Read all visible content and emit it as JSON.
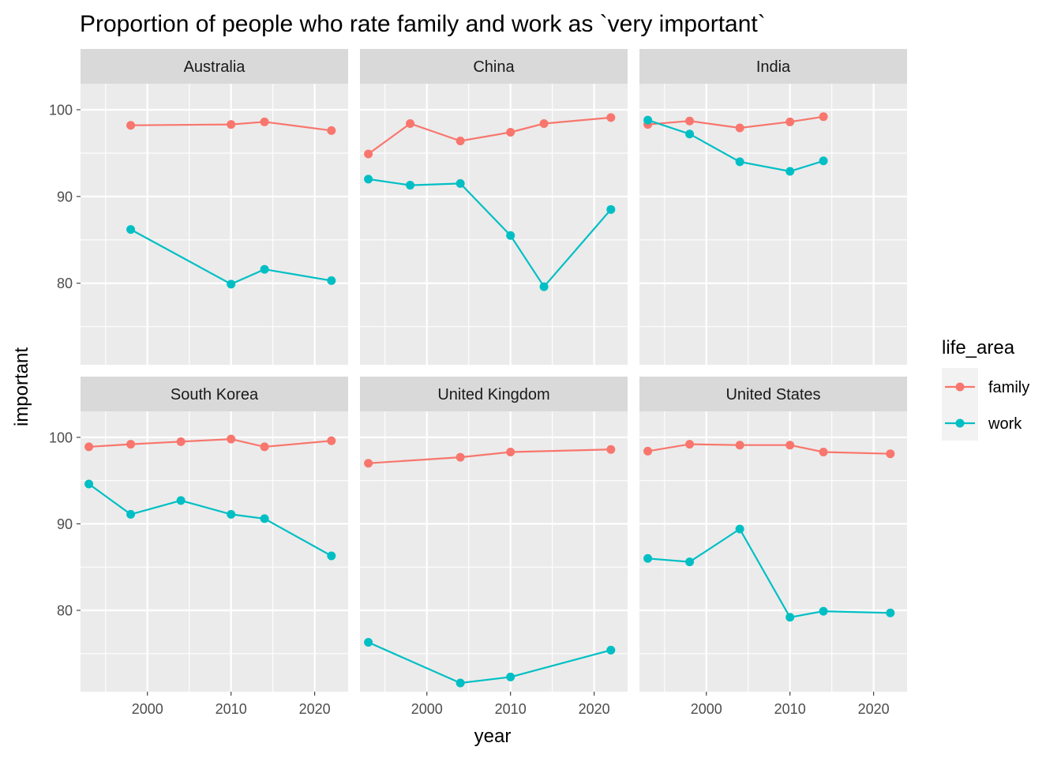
{
  "chart_data": {
    "type": "line",
    "title": "Proportion of people who rate family and work as `very important`",
    "xlabel": "year",
    "ylabel": "important",
    "xlim": [
      1992,
      2024
    ],
    "ylim": [
      70.6,
      103.0
    ],
    "x_ticks": [
      2000,
      2010,
      2020
    ],
    "y_ticks": [
      80,
      90,
      100
    ],
    "grid": true,
    "legend": {
      "title": "life_area",
      "position": "right",
      "entries": [
        {
          "name": "family",
          "color": "#F8766D"
        },
        {
          "name": "work",
          "color": "#00BFC4"
        }
      ]
    },
    "panels": [
      {
        "name": "Australia",
        "series": [
          {
            "name": "family",
            "x": [
              1998,
              2010,
              2014,
              2022
            ],
            "y": [
              98.2,
              98.3,
              98.6,
              97.6
            ]
          },
          {
            "name": "work",
            "x": [
              1998,
              2010,
              2014,
              2022
            ],
            "y": [
              86.2,
              79.9,
              81.6,
              80.3
            ]
          }
        ]
      },
      {
        "name": "China",
        "series": [
          {
            "name": "family",
            "x": [
              1993,
              1998,
              2004,
              2010,
              2014,
              2022
            ],
            "y": [
              94.9,
              98.4,
              96.4,
              97.4,
              98.4,
              99.1
            ]
          },
          {
            "name": "work",
            "x": [
              1993,
              1998,
              2004,
              2010,
              2014,
              2022
            ],
            "y": [
              92.0,
              91.3,
              91.5,
              85.5,
              79.6,
              88.5
            ]
          }
        ]
      },
      {
        "name": "India",
        "series": [
          {
            "name": "family",
            "x": [
              1993,
              1998,
              2004,
              2010,
              2014
            ],
            "y": [
              98.3,
              98.7,
              97.9,
              98.6,
              99.2
            ]
          },
          {
            "name": "work",
            "x": [
              1993,
              1998,
              2004,
              2010,
              2014
            ],
            "y": [
              98.8,
              97.2,
              94.0,
              92.9,
              94.1
            ]
          }
        ]
      },
      {
        "name": "South Korea",
        "series": [
          {
            "name": "family",
            "x": [
              1993,
              1998,
              2004,
              2010,
              2014,
              2022
            ],
            "y": [
              98.9,
              99.2,
              99.5,
              99.8,
              98.9,
              99.6
            ]
          },
          {
            "name": "work",
            "x": [
              1993,
              1998,
              2004,
              2010,
              2014,
              2022
            ],
            "y": [
              94.6,
              91.1,
              92.7,
              91.1,
              90.6,
              86.3
            ]
          }
        ]
      },
      {
        "name": "United Kingdom",
        "series": [
          {
            "name": "family",
            "x": [
              1993,
              2004,
              2010,
              2022
            ],
            "y": [
              97.0,
              97.7,
              98.3,
              98.6
            ]
          },
          {
            "name": "work",
            "x": [
              1993,
              2004,
              2010,
              2022
            ],
            "y": [
              76.3,
              71.6,
              72.3,
              75.4
            ]
          }
        ]
      },
      {
        "name": "United States",
        "series": [
          {
            "name": "family",
            "x": [
              1993,
              1998,
              2004,
              2010,
              2014,
              2022
            ],
            "y": [
              98.4,
              99.2,
              99.1,
              99.1,
              98.3,
              98.1
            ]
          },
          {
            "name": "work",
            "x": [
              1993,
              1998,
              2004,
              2010,
              2014,
              2022
            ],
            "y": [
              86.0,
              85.6,
              89.4,
              79.2,
              79.9,
              79.7
            ]
          }
        ]
      }
    ]
  }
}
